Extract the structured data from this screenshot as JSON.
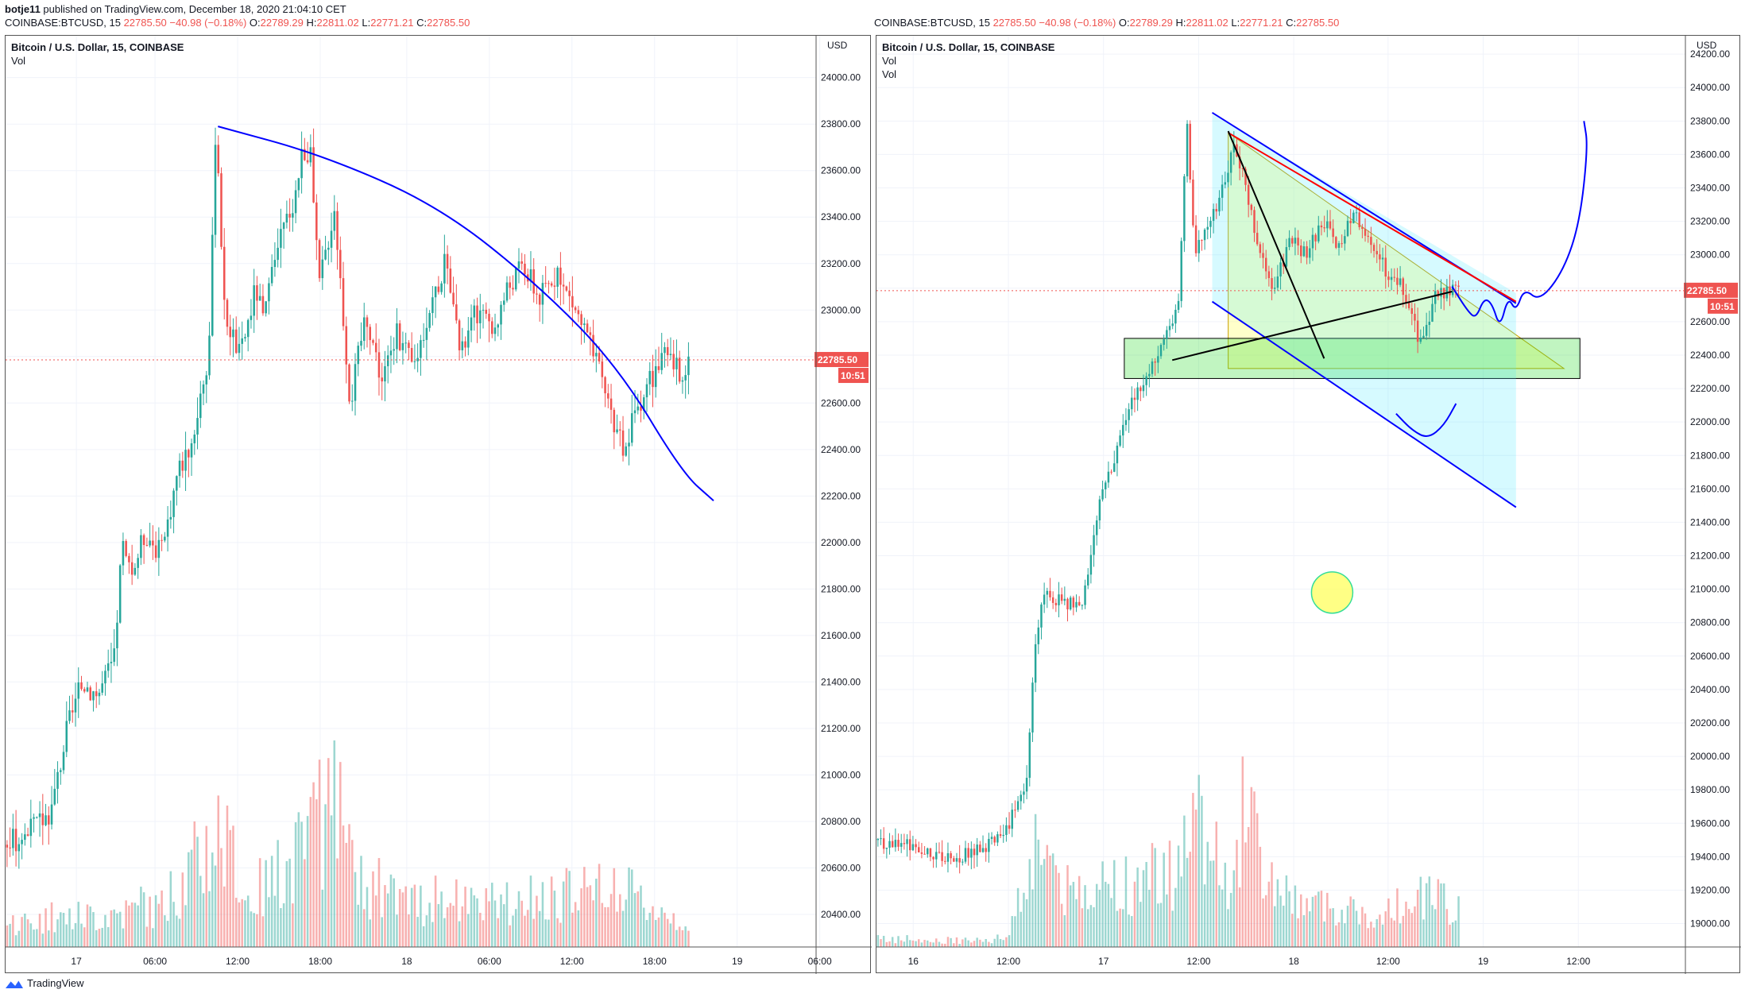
{
  "header": {
    "author": "botje11",
    "published": "published on TradingView.com, December 18, 2020 21:04:10 CET"
  },
  "ohlc": {
    "symbol": "COINBASE:BTCUSD, 15",
    "last": "22785.50",
    "change": "−40.98 (−0.18%)",
    "o_label": "O:",
    "o": "22789.29",
    "h_label": "H:",
    "h": "22811.02",
    "l_label": "L:",
    "l": "22771.21",
    "c_label": "C:",
    "c": "22785.50"
  },
  "colors": {
    "up": "#26a69a",
    "down": "#ef5350",
    "drawing_blue": "#0000ff",
    "price_tag": "#ef5350"
  },
  "footer": {
    "brand": "TradingView",
    "brand_icon": "tradingview-logo-icon"
  },
  "chart_data": [
    {
      "type": "candlestick",
      "title": "Bitcoin / U.S. Dollar, 15, COINBASE",
      "legend_items": [
        "Vol"
      ],
      "currency_label": "USD",
      "current_price_tag": "22785.50",
      "countdown_tag": "10:51",
      "y_ticks": [
        24000,
        23800,
        23600,
        23400,
        23200,
        23000,
        22800,
        22600,
        22400,
        22200,
        22000,
        21800,
        21600,
        21400,
        21200,
        21000,
        20800,
        20600,
        20400
      ],
      "ylim": [
        20260,
        24180
      ],
      "x_ticks": [
        "17",
        "06:00",
        "12:00",
        "18:00",
        "18",
        "06:00",
        "12:00",
        "18:00",
        "19",
        "06:00"
      ],
      "xlim": [
        0,
        100
      ],
      "x_tick_pos": [
        9,
        19,
        29.5,
        40,
        51,
        61.5,
        72,
        82.5,
        93,
        103.5
      ],
      "price_path": [
        [
          0,
          20700
        ],
        [
          3,
          20750
        ],
        [
          6,
          20850
        ],
        [
          8,
          21200
        ],
        [
          10,
          21400
        ],
        [
          12,
          21350
        ],
        [
          14,
          21500
        ],
        [
          15,
          22000
        ],
        [
          16,
          21850
        ],
        [
          18,
          22050
        ],
        [
          20,
          21950
        ],
        [
          22,
          22300
        ],
        [
          24,
          22450
        ],
        [
          25,
          22650
        ],
        [
          26,
          22800
        ],
        [
          27,
          23800
        ],
        [
          28,
          23000
        ],
        [
          30,
          22800
        ],
        [
          32,
          23100
        ],
        [
          33,
          22950
        ],
        [
          35,
          23300
        ],
        [
          37,
          23500
        ],
        [
          38,
          23700
        ],
        [
          39,
          23650
        ],
        [
          40,
          23100
        ],
        [
          42,
          23450
        ],
        [
          44,
          22600
        ],
        [
          46,
          23000
        ],
        [
          48,
          22700
        ],
        [
          50,
          22900
        ],
        [
          52,
          22750
        ],
        [
          54,
          23000
        ],
        [
          56,
          23200
        ],
        [
          58,
          22800
        ],
        [
          60,
          23000
        ],
        [
          62,
          22900
        ],
        [
          64,
          23100
        ],
        [
          66,
          23200
        ],
        [
          68,
          23050
        ],
        [
          70,
          23150
        ],
        [
          72,
          23050
        ],
        [
          74,
          22900
        ],
        [
          76,
          22700
        ],
        [
          77,
          22600
        ],
        [
          78,
          22450
        ],
        [
          79,
          22380
        ],
        [
          80,
          22550
        ],
        [
          82,
          22700
        ],
        [
          84,
          22800
        ],
        [
          86,
          22740
        ],
        [
          87,
          22790
        ]
      ],
      "volume_path": [
        [
          0,
          0.15
        ],
        [
          10,
          0.2
        ],
        [
          20,
          0.25
        ],
        [
          27,
          0.75
        ],
        [
          30,
          0.3
        ],
        [
          35,
          0.45
        ],
        [
          42,
          0.9
        ],
        [
          44,
          0.4
        ],
        [
          50,
          0.3
        ],
        [
          60,
          0.25
        ],
        [
          70,
          0.3
        ],
        [
          78,
          0.35
        ],
        [
          87,
          0.15
        ]
      ],
      "drawings": [
        {
          "kind": "curve",
          "color": "#0000ff",
          "points": [
            [
              27,
              23790
            ],
            [
              40,
              23670
            ],
            [
              55,
              23450
            ],
            [
              68,
              23100
            ],
            [
              78,
              22750
            ],
            [
              86,
              22300
            ],
            [
              90,
              22180
            ]
          ]
        }
      ]
    },
    {
      "type": "candlestick",
      "title": "Bitcoin / U.S. Dollar, 15, COINBASE",
      "legend_items": [
        "Vol",
        "Vol"
      ],
      "currency_label": "USD",
      "current_price_tag": "22785.50",
      "countdown_tag": "10:51",
      "y_ticks": [
        24200,
        24000,
        23800,
        23600,
        23400,
        23200,
        23000,
        22800,
        22600,
        22400,
        22200,
        22000,
        21800,
        21600,
        21400,
        21200,
        21000,
        20800,
        20600,
        20400,
        20200,
        20000,
        19800,
        19600,
        19400,
        19200,
        19000
      ],
      "ylim": [
        18860,
        24310
      ],
      "x_ticks": [
        "16",
        "12:00",
        "17",
        "12:00",
        "18",
        "12:00",
        "19",
        "12:00"
      ],
      "xlim": [
        0,
        100
      ],
      "x_tick_pos": [
        4.6,
        16.5,
        28.4,
        40.3,
        52.2,
        64,
        75.9,
        87.8
      ],
      "price_path": [
        [
          0,
          19500
        ],
        [
          5,
          19450
        ],
        [
          10,
          19400
        ],
        [
          14,
          19450
        ],
        [
          16,
          19550
        ],
        [
          18,
          19700
        ],
        [
          19,
          19900
        ],
        [
          20,
          20600
        ],
        [
          21,
          21000
        ],
        [
          24,
          20900
        ],
        [
          26,
          20950
        ],
        [
          27,
          21200
        ],
        [
          28,
          21500
        ],
        [
          30,
          21800
        ],
        [
          32,
          22100
        ],
        [
          34,
          22250
        ],
        [
          36,
          22500
        ],
        [
          38,
          22700
        ],
        [
          39,
          23800
        ],
        [
          40,
          23000
        ],
        [
          42,
          23200
        ],
        [
          43,
          23300
        ],
        [
          45,
          23650
        ],
        [
          46,
          23500
        ],
        [
          48,
          23000
        ],
        [
          50,
          22800
        ],
        [
          52,
          23100
        ],
        [
          54,
          23000
        ],
        [
          56,
          23200
        ],
        [
          58,
          23050
        ],
        [
          60,
          23250
        ],
        [
          62,
          23100
        ],
        [
          64,
          22900
        ],
        [
          66,
          22800
        ],
        [
          68,
          22500
        ],
        [
          69,
          22550
        ],
        [
          70,
          22750
        ],
        [
          72,
          22780
        ],
        [
          73,
          22785
        ]
      ],
      "volume_path": [
        [
          0,
          0.05
        ],
        [
          10,
          0.04
        ],
        [
          16,
          0.05
        ],
        [
          18,
          0.3
        ],
        [
          20,
          0.6
        ],
        [
          24,
          0.3
        ],
        [
          28,
          0.35
        ],
        [
          34,
          0.4
        ],
        [
          38,
          0.5
        ],
        [
          40,
          0.7
        ],
        [
          44,
          0.45
        ],
        [
          46,
          0.9
        ],
        [
          48,
          0.4
        ],
        [
          52,
          0.25
        ],
        [
          58,
          0.2
        ],
        [
          64,
          0.25
        ],
        [
          70,
          0.3
        ],
        [
          73,
          0.2
        ]
      ],
      "drawings": [
        {
          "kind": "triangle",
          "fill": "#ffff66",
          "points": [
            [
              44,
              23730
            ],
            [
              86,
              22320
            ],
            [
              44,
              22320
            ]
          ]
        },
        {
          "kind": "rect",
          "fill": "#33dd33",
          "x": [
            31,
            88
          ],
          "y": [
            22260,
            22500
          ]
        },
        {
          "kind": "channel",
          "fill": "#44e6ff",
          "points": [
            [
              42,
              23840
            ],
            [
              80,
              22770
            ],
            [
              80,
              21490
            ],
            [
              42,
              22720
            ]
          ]
        },
        {
          "kind": "line",
          "color": "#0000ff",
          "points": [
            [
              42,
              23850
            ],
            [
              80,
              22710
            ]
          ]
        },
        {
          "kind": "line",
          "color": "#0000ff",
          "points": [
            [
              42,
              22720
            ],
            [
              80,
              21490
            ]
          ]
        },
        {
          "kind": "line",
          "color": "#ff0000",
          "points": [
            [
              44,
              23730
            ],
            [
              80,
              22720
            ]
          ]
        },
        {
          "kind": "line",
          "color": "#000000",
          "points": [
            [
              44,
              23740
            ],
            [
              56,
              22380
            ]
          ]
        },
        {
          "kind": "line",
          "color": "#000000",
          "points": [
            [
              37,
              22370
            ],
            [
              72,
              22780
            ]
          ]
        },
        {
          "kind": "scribble",
          "color": "#0000ff",
          "points": [
            [
              72,
              22810
            ],
            [
              74,
              22660
            ],
            [
              75,
              22620
            ],
            [
              76,
              22740
            ],
            [
              77,
              22710
            ],
            [
              78,
              22560
            ],
            [
              79,
              22750
            ],
            [
              80,
              22660
            ],
            [
              81,
              22800
            ],
            [
              83,
              22720
            ],
            [
              86,
              22910
            ],
            [
              88,
              23200
            ],
            [
              89,
              23650
            ],
            [
              88.5,
              23800
            ]
          ]
        },
        {
          "kind": "scribble",
          "color": "#0000ff",
          "points": [
            [
              65,
              22050
            ],
            [
              67,
              21950
            ],
            [
              69,
              21900
            ],
            [
              71,
              21980
            ],
            [
              72.5,
              22110
            ]
          ]
        },
        {
          "kind": "circle",
          "fill": "#ffff66",
          "stroke": "#33dd99",
          "cx": 57,
          "cy": 20980,
          "r": 26
        }
      ]
    }
  ]
}
